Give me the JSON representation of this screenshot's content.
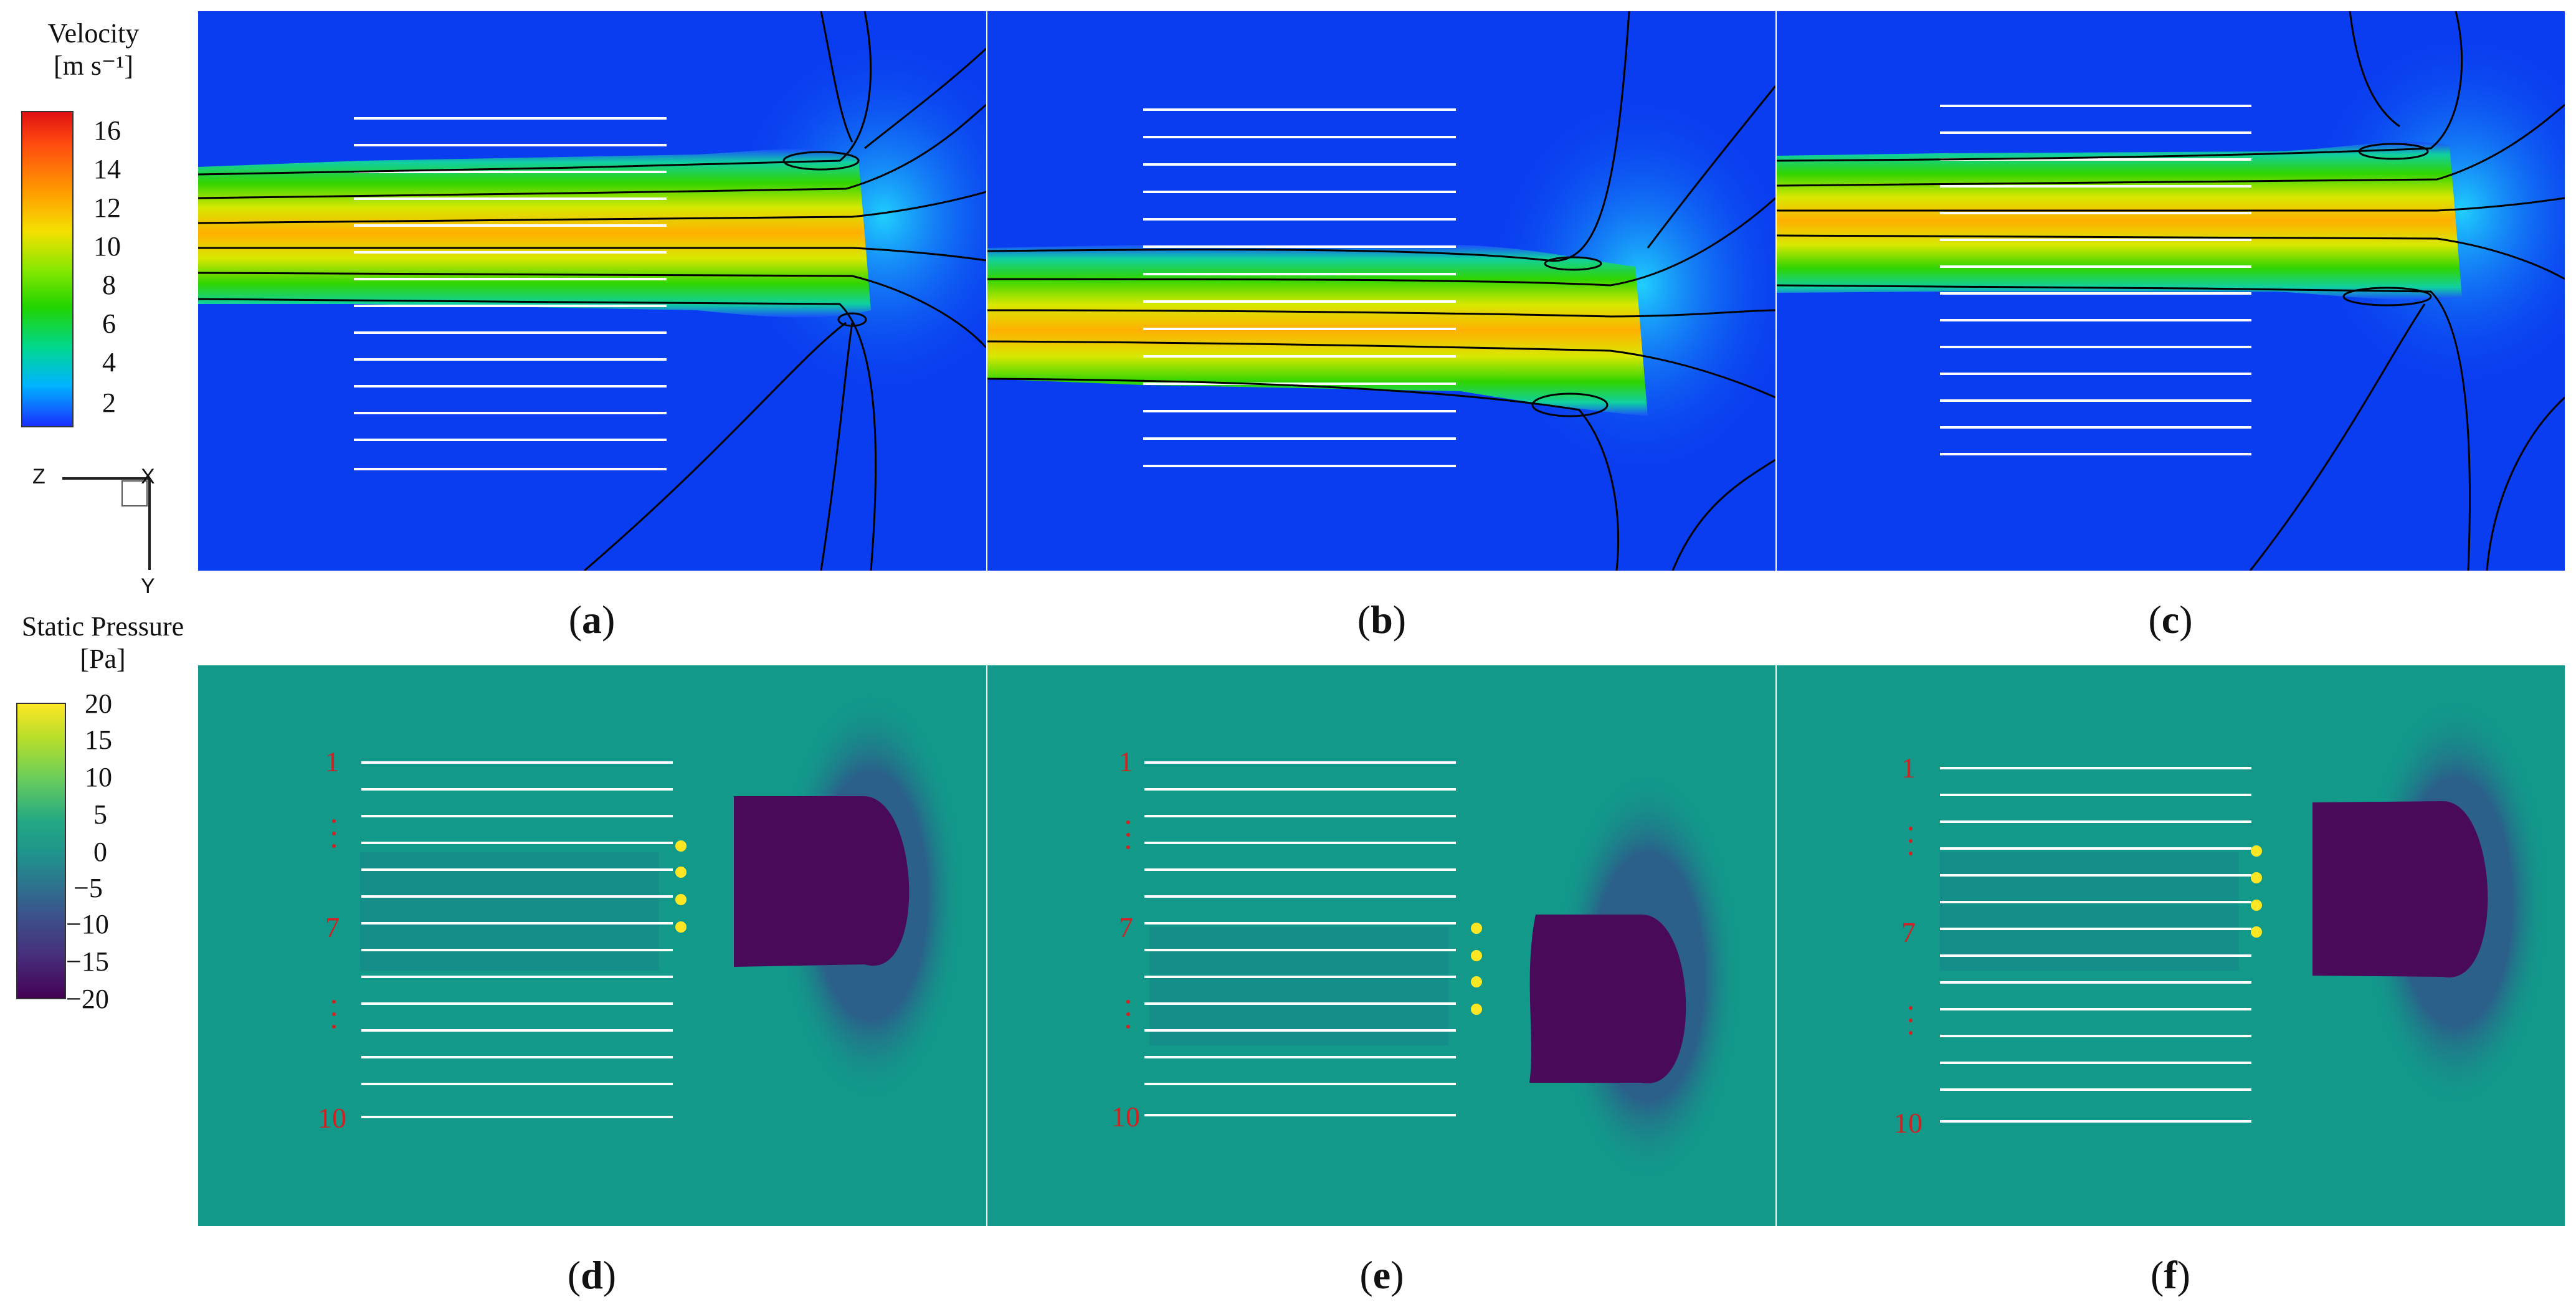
{
  "velocity_legend": {
    "title_line1": "Velocity",
    "title_line2": "[m s⁻¹]",
    "ticks": [
      "16",
      "14",
      "12",
      "10",
      "8",
      "6",
      "4",
      "2"
    ],
    "colors": [
      "#ff1a0a",
      "#ff8a00",
      "#ffe000",
      "#9af000",
      "#22d400",
      "#00d8a0",
      "#00b8ff",
      "#1a3cff"
    ]
  },
  "axes": {
    "z": "Z",
    "x": "X",
    "y": "Y"
  },
  "pressure_legend": {
    "title_line1": "Static Pressure",
    "title_line2": "[Pa]",
    "ticks": [
      "20",
      "15",
      "10",
      "5",
      "0",
      "−5",
      "−10",
      "−15",
      "−20"
    ],
    "colors": [
      "#fde725",
      "#7ad151",
      "#22a884",
      "#12998a",
      "#21918c",
      "#2c728e",
      "#3b528b",
      "#472d7b",
      "#440154"
    ]
  },
  "captions": [
    {
      "pre": "(",
      "letter": "a",
      "post": ")"
    },
    {
      "pre": "(",
      "letter": "b",
      "post": ")"
    },
    {
      "pre": "(",
      "letter": "c",
      "post": ")"
    },
    {
      "pre": "(",
      "letter": "d",
      "post": ")"
    },
    {
      "pre": "(",
      "letter": "e",
      "post": ")"
    },
    {
      "pre": "(",
      "letter": "f",
      "post": ")"
    }
  ],
  "row_labels": {
    "first": "1",
    "middle": "7",
    "last": "10"
  },
  "colors": {
    "velocity_bg": "#0a3cf0",
    "pressure_bg": "#12998a",
    "pressure_low": "#4a0a5a",
    "streamline": "#000000",
    "plate_line": "#ffffff",
    "row_label": "#d42020"
  }
}
